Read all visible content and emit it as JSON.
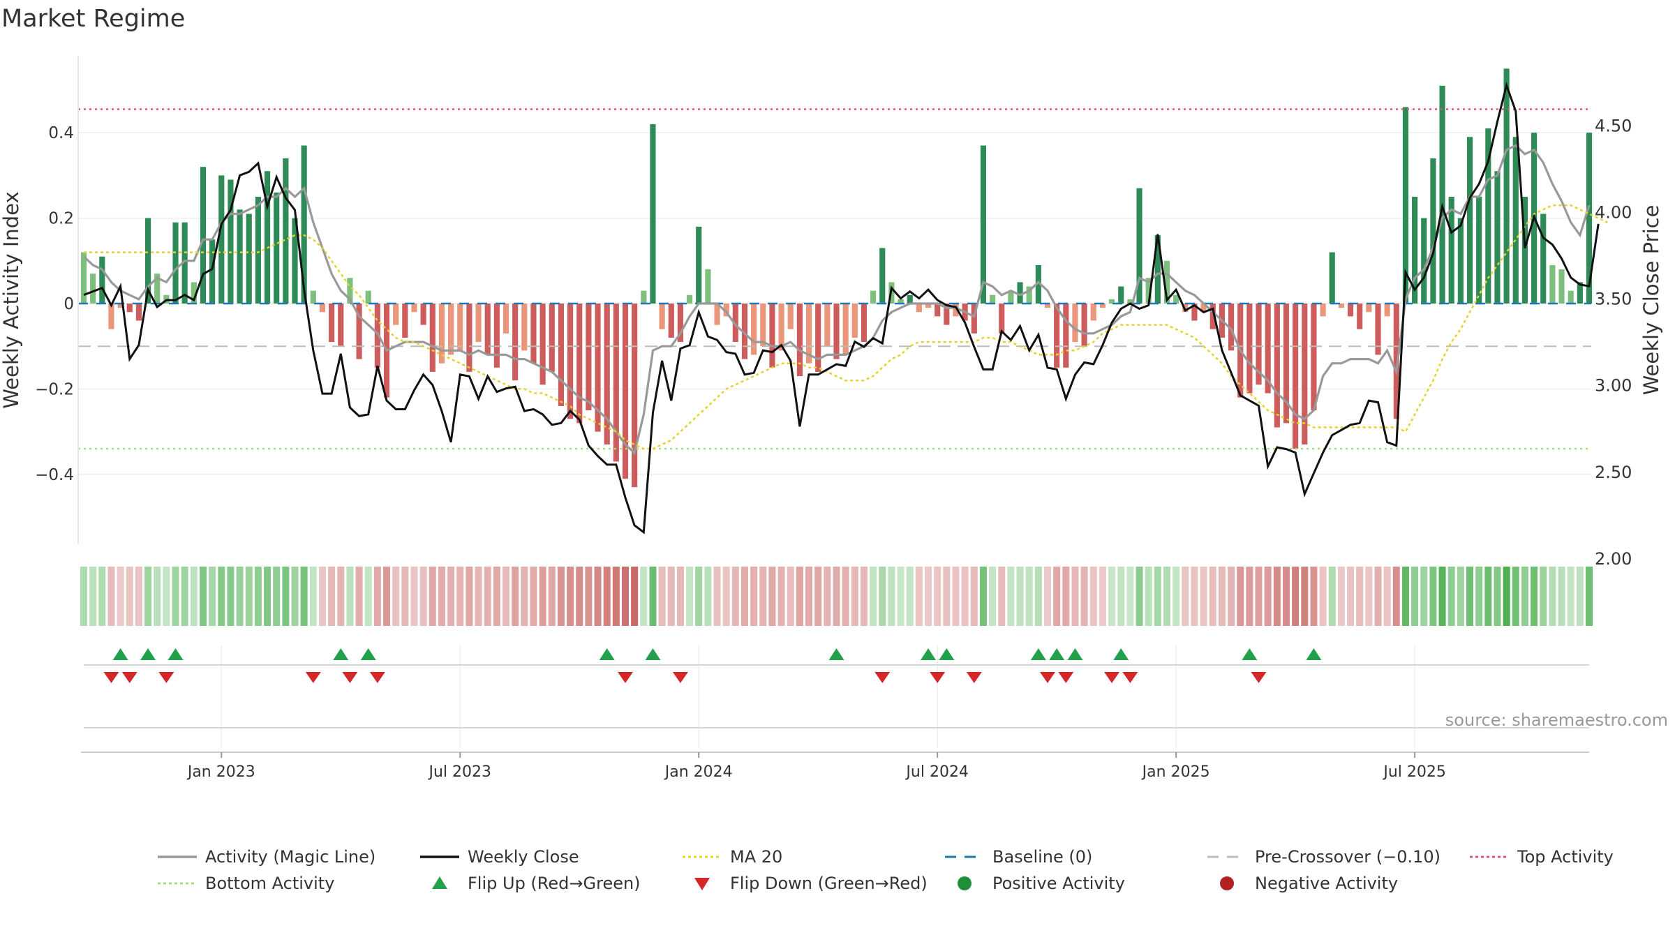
{
  "chart_data": {
    "type": "bar",
    "title": "Market Regime",
    "ylabel_left": "Weekly Activity Index",
    "ylabel_right": "Weekly Close Price",
    "left_ticks": [
      "0.4",
      "0.2",
      "0",
      "−0.2",
      "−0.4"
    ],
    "left_tick_values": [
      0.4,
      0.2,
      0,
      -0.2,
      -0.4
    ],
    "right_ticks": [
      "4.50",
      "4.00",
      "3.50",
      "3.00",
      "2.50",
      "2.00"
    ],
    "right_tick_values": [
      4.5,
      4.0,
      3.5,
      3.0,
      2.5,
      2.0
    ],
    "x_ticks": [
      "Jan 2023",
      "Jul 2023",
      "Jan 2024",
      "Jul 2024",
      "Jan 2025",
      "Jul 2025"
    ],
    "x_tick_weeks": [
      15,
      41,
      67,
      93,
      119,
      145
    ],
    "ylim_left": [
      -0.58,
      0.58
    ],
    "ylim_right": [
      2.0,
      4.9
    ],
    "reference_lines": {
      "top_activity": 0.455,
      "bottom_activity": -0.34,
      "pre_crossover": -0.1,
      "baseline": 0
    },
    "activity": [
      0.12,
      0.07,
      0.11,
      -0.06,
      -0.01,
      -0.02,
      -0.04,
      0.2,
      0.07,
      0.02,
      0.19,
      0.19,
      0.05,
      0.32,
      0.15,
      0.3,
      0.29,
      0.22,
      0.21,
      0.25,
      0.31,
      0.26,
      0.34,
      0.2,
      0.37,
      0.03,
      -0.02,
      -0.09,
      -0.1,
      0.06,
      -0.13,
      0.03,
      -0.15,
      -0.22,
      -0.05,
      -0.08,
      -0.02,
      -0.05,
      -0.16,
      -0.14,
      -0.12,
      -0.11,
      -0.16,
      -0.09,
      -0.12,
      -0.15,
      -0.07,
      -0.18,
      -0.11,
      -0.14,
      -0.19,
      -0.16,
      -0.24,
      -0.27,
      -0.28,
      -0.25,
      -0.3,
      -0.33,
      -0.37,
      -0.41,
      -0.43,
      0.03,
      0.42,
      -0.06,
      -0.08,
      -0.09,
      0.02,
      0.18,
      0.08,
      -0.05,
      -0.03,
      -0.09,
      -0.13,
      -0.12,
      -0.1,
      -0.15,
      -0.11,
      -0.06,
      -0.17,
      -0.14,
      -0.16,
      -0.1,
      -0.13,
      -0.12,
      -0.08,
      -0.09,
      0.03,
      0.13,
      0.05,
      0.01,
      0.02,
      -0.02,
      -0.01,
      -0.03,
      -0.05,
      -0.03,
      -0.04,
      -0.07,
      0.37,
      0.02,
      -0.07,
      0.03,
      0.05,
      0.04,
      0.09,
      -0.01,
      -0.15,
      -0.15,
      -0.09,
      -0.1,
      -0.04,
      -0.01,
      0.01,
      0.04,
      0.01,
      0.27,
      0.06,
      0.16,
      0.1,
      0.02,
      -0.02,
      -0.04,
      -0.02,
      -0.06,
      -0.08,
      -0.11,
      -0.22,
      -0.21,
      -0.19,
      -0.21,
      -0.29,
      -0.28,
      -0.34,
      -0.33,
      -0.25,
      -0.03,
      0.12,
      -0.01,
      -0.03,
      -0.06,
      -0.02,
      -0.12,
      -0.03,
      -0.27,
      0.46,
      0.25,
      0.2,
      0.34,
      0.51,
      0.25,
      0.2,
      0.39,
      0.25,
      0.41,
      0.31,
      0.55,
      0.39,
      0.25,
      0.4,
      0.21,
      0.09,
      0.08,
      0.03,
      0.05,
      0.4
    ],
    "magic_line": [
      0.11,
      0.09,
      0.08,
      0.05,
      0.03,
      0.02,
      0.01,
      0.04,
      0.06,
      0.05,
      0.08,
      0.1,
      0.1,
      0.15,
      0.15,
      0.19,
      0.21,
      0.21,
      0.22,
      0.23,
      0.25,
      0.25,
      0.27,
      0.25,
      0.27,
      0.19,
      0.13,
      0.07,
      0.03,
      0.01,
      -0.03,
      -0.05,
      -0.07,
      -0.11,
      -0.1,
      -0.09,
      -0.09,
      -0.09,
      -0.1,
      -0.11,
      -0.11,
      -0.11,
      -0.12,
      -0.11,
      -0.12,
      -0.12,
      -0.12,
      -0.13,
      -0.13,
      -0.14,
      -0.15,
      -0.16,
      -0.18,
      -0.2,
      -0.22,
      -0.23,
      -0.25,
      -0.27,
      -0.3,
      -0.33,
      -0.35,
      -0.26,
      -0.11,
      -0.1,
      -0.1,
      -0.07,
      -0.03,
      0.0,
      0.0,
      0.0,
      -0.02,
      -0.05,
      -0.07,
      -0.09,
      -0.09,
      -0.1,
      -0.1,
      -0.09,
      -0.11,
      -0.12,
      -0.13,
      -0.12,
      -0.12,
      -0.12,
      -0.11,
      -0.1,
      -0.08,
      -0.04,
      -0.02,
      -0.01,
      0.0,
      0.0,
      0.0,
      0.0,
      -0.01,
      -0.01,
      -0.02,
      -0.03,
      0.05,
      0.04,
      0.02,
      0.03,
      0.02,
      0.03,
      0.05,
      0.03,
      -0.01,
      -0.04,
      -0.06,
      -0.07,
      -0.07,
      -0.06,
      -0.05,
      -0.03,
      -0.02,
      0.06,
      0.05,
      0.07,
      0.07,
      0.05,
      0.03,
      0.02,
      0.0,
      -0.02,
      -0.04,
      -0.06,
      -0.11,
      -0.14,
      -0.16,
      -0.18,
      -0.21,
      -0.23,
      -0.26,
      -0.27,
      -0.25,
      -0.17,
      -0.14,
      -0.14,
      -0.13,
      -0.13,
      -0.13,
      -0.14,
      -0.11,
      -0.16,
      0.01,
      0.06,
      0.08,
      0.13,
      0.2,
      0.22,
      0.21,
      0.25,
      0.25,
      0.29,
      0.3,
      0.36,
      0.37,
      0.35,
      0.36,
      0.33,
      0.28,
      0.24,
      0.19,
      0.16,
      0.23
    ],
    "ma20": [
      0.12,
      0.12,
      0.12,
      0.12,
      0.12,
      0.12,
      0.12,
      0.12,
      0.12,
      0.12,
      0.12,
      0.12,
      0.12,
      0.12,
      0.12,
      0.12,
      0.12,
      0.12,
      0.12,
      0.12,
      0.13,
      0.14,
      0.15,
      0.16,
      0.16,
      0.15,
      0.13,
      0.1,
      0.07,
      0.04,
      0.02,
      -0.01,
      -0.04,
      -0.06,
      -0.08,
      -0.09,
      -0.09,
      -0.1,
      -0.11,
      -0.12,
      -0.13,
      -0.14,
      -0.15,
      -0.16,
      -0.17,
      -0.18,
      -0.19,
      -0.2,
      -0.2,
      -0.21,
      -0.21,
      -0.22,
      -0.23,
      -0.24,
      -0.26,
      -0.27,
      -0.28,
      -0.29,
      -0.3,
      -0.32,
      -0.33,
      -0.34,
      -0.34,
      -0.33,
      -0.32,
      -0.3,
      -0.28,
      -0.26,
      -0.24,
      -0.22,
      -0.2,
      -0.19,
      -0.18,
      -0.17,
      -0.16,
      -0.15,
      -0.14,
      -0.14,
      -0.14,
      -0.15,
      -0.15,
      -0.16,
      -0.17,
      -0.18,
      -0.18,
      -0.18,
      -0.17,
      -0.15,
      -0.13,
      -0.12,
      -0.1,
      -0.09,
      -0.09,
      -0.09,
      -0.09,
      -0.09,
      -0.09,
      -0.09,
      -0.08,
      -0.08,
      -0.09,
      -0.09,
      -0.1,
      -0.11,
      -0.12,
      -0.12,
      -0.12,
      -0.11,
      -0.11,
      -0.1,
      -0.09,
      -0.07,
      -0.06,
      -0.05,
      -0.05,
      -0.05,
      -0.05,
      -0.05,
      -0.05,
      -0.06,
      -0.07,
      -0.08,
      -0.1,
      -0.12,
      -0.14,
      -0.17,
      -0.19,
      -0.21,
      -0.23,
      -0.25,
      -0.26,
      -0.27,
      -0.28,
      -0.28,
      -0.29,
      -0.29,
      -0.29,
      -0.29,
      -0.29,
      -0.29,
      -0.29,
      -0.29,
      -0.29,
      -0.29,
      -0.3,
      -0.26,
      -0.22,
      -0.18,
      -0.13,
      -0.09,
      -0.06,
      -0.02,
      0.02,
      0.06,
      0.09,
      0.12,
      0.15,
      0.18,
      0.21,
      0.22,
      0.23,
      0.23,
      0.23,
      0.22,
      0.21,
      0.2,
      0.19
    ],
    "weekly_close": [
      3.52,
      3.54,
      3.56,
      3.46,
      3.57,
      3.15,
      3.23,
      3.55,
      3.45,
      3.49,
      3.49,
      3.52,
      3.49,
      3.64,
      3.67,
      3.93,
      4.01,
      4.21,
      4.23,
      4.28,
      4.03,
      4.2,
      4.08,
      4.01,
      3.55,
      3.2,
      2.95,
      2.95,
      3.18,
      2.87,
      2.82,
      2.83,
      3.11,
      2.91,
      2.86,
      2.86,
      2.97,
      3.06,
      3.0,
      2.85,
      2.67,
      3.06,
      3.05,
      2.92,
      3.05,
      2.96,
      2.98,
      2.99,
      2.85,
      2.86,
      2.83,
      2.77,
      2.78,
      2.85,
      2.8,
      2.65,
      2.59,
      2.54,
      2.54,
      2.35,
      2.19,
      2.15,
      2.84,
      3.14,
      2.91,
      3.21,
      3.23,
      3.42,
      3.28,
      3.26,
      3.19,
      3.18,
      3.06,
      3.07,
      3.2,
      3.19,
      3.23,
      3.14,
      2.76,
      3.06,
      3.06,
      3.09,
      3.12,
      3.11,
      3.25,
      3.22,
      3.27,
      3.24,
      3.56,
      3.5,
      3.54,
      3.5,
      3.55,
      3.49,
      3.46,
      3.45,
      3.36,
      3.22,
      3.09,
      3.09,
      3.31,
      3.26,
      3.34,
      3.2,
      3.29,
      3.1,
      3.09,
      2.92,
      3.06,
      3.13,
      3.12,
      3.23,
      3.36,
      3.44,
      3.47,
      3.44,
      3.46,
      3.87,
      3.49,
      3.55,
      3.43,
      3.46,
      3.42,
      3.44,
      3.2,
      3.07,
      2.94,
      2.91,
      2.88,
      2.53,
      2.64,
      2.63,
      2.61,
      2.37,
      2.49,
      2.61,
      2.71,
      2.74,
      2.77,
      2.78,
      2.91,
      2.9,
      2.67,
      2.65,
      3.65,
      3.55,
      3.62,
      3.76,
      4.03,
      3.88,
      3.92,
      4.08,
      4.16,
      4.29,
      4.52,
      4.73,
      4.58,
      3.79,
      3.97,
      3.85,
      3.81,
      3.73,
      3.62,
      3.58,
      3.57,
      3.93
    ],
    "flip_up_weeks": [
      4,
      7,
      10,
      28,
      31,
      57,
      62,
      82,
      92,
      94,
      104,
      106,
      108,
      113,
      127,
      134
    ],
    "flip_down_weeks": [
      3,
      5,
      9,
      25,
      29,
      32,
      59,
      65,
      87,
      93,
      97,
      105,
      107,
      112,
      114,
      128
    ],
    "markers_label_annotation": "source: sharemaestro.com",
    "legend": [
      {
        "label": "Activity (Magic Line)",
        "kind": "line-gray"
      },
      {
        "label": "Weekly Close",
        "kind": "line-black"
      },
      {
        "label": "MA 20",
        "kind": "dotted-yellow"
      },
      {
        "label": "Baseline (0)",
        "kind": "dash-blue"
      },
      {
        "label": "Pre-Crossover (−0.10)",
        "kind": "dash-gray"
      },
      {
        "label": "Top Activity",
        "kind": "dotted-red"
      },
      {
        "label": "Bottom Activity",
        "kind": "dotted-green"
      },
      {
        "label": "Flip Up (Red→Green)",
        "kind": "tri-up"
      },
      {
        "label": "Flip Down (Green→Red)",
        "kind": "tri-down"
      },
      {
        "label": "Positive Activity",
        "kind": "dot-green"
      },
      {
        "label": "Negative Activity",
        "kind": "dot-red"
      }
    ],
    "colors": {
      "pos_strong": "#2e8b57",
      "pos_light": "#7dbf7d",
      "neg_strong": "#cd5c5c",
      "neg_light": "#e9967a",
      "close_line": "#111111",
      "magic_line": "#999999",
      "ma20": "#e6d12f",
      "top_line": "#e05577",
      "bottom_line": "#a6dc7a",
      "baseline": "#1f77b4",
      "pre_cross": "#bbbbbb",
      "flip_up": "#22a04b",
      "flip_down": "#d62728",
      "pos_dot": "#1f8f3a",
      "neg_dot": "#b22222"
    }
  }
}
